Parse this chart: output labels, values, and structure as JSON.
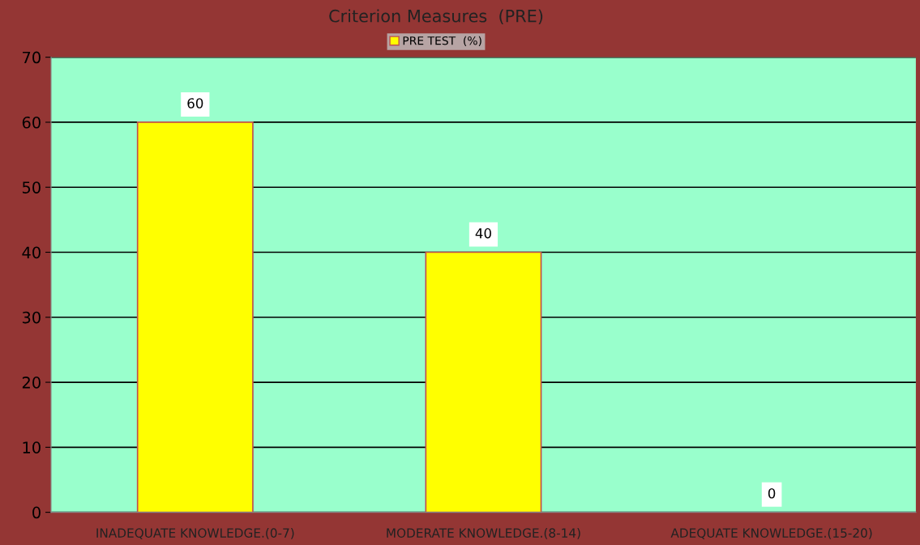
{
  "chart_data": {
    "type": "bar",
    "title": "Criterion Measures  (PRE)",
    "categories": [
      "INADEQUATE KNOWLEDGE.(0-7)",
      "MODERATE KNOWLEDGE.(8-14)",
      "ADEQUATE KNOWLEDGE.(15-20)"
    ],
    "series": [
      {
        "name": "PRE TEST  (%)",
        "color": "#ffff00",
        "values": [
          60,
          40,
          0
        ]
      }
    ],
    "ylim": [
      0,
      70
    ],
    "yticks": [
      0,
      10,
      20,
      30,
      40,
      50,
      60,
      70
    ],
    "grid": "y",
    "legend": "top",
    "data_labels": true
  }
}
